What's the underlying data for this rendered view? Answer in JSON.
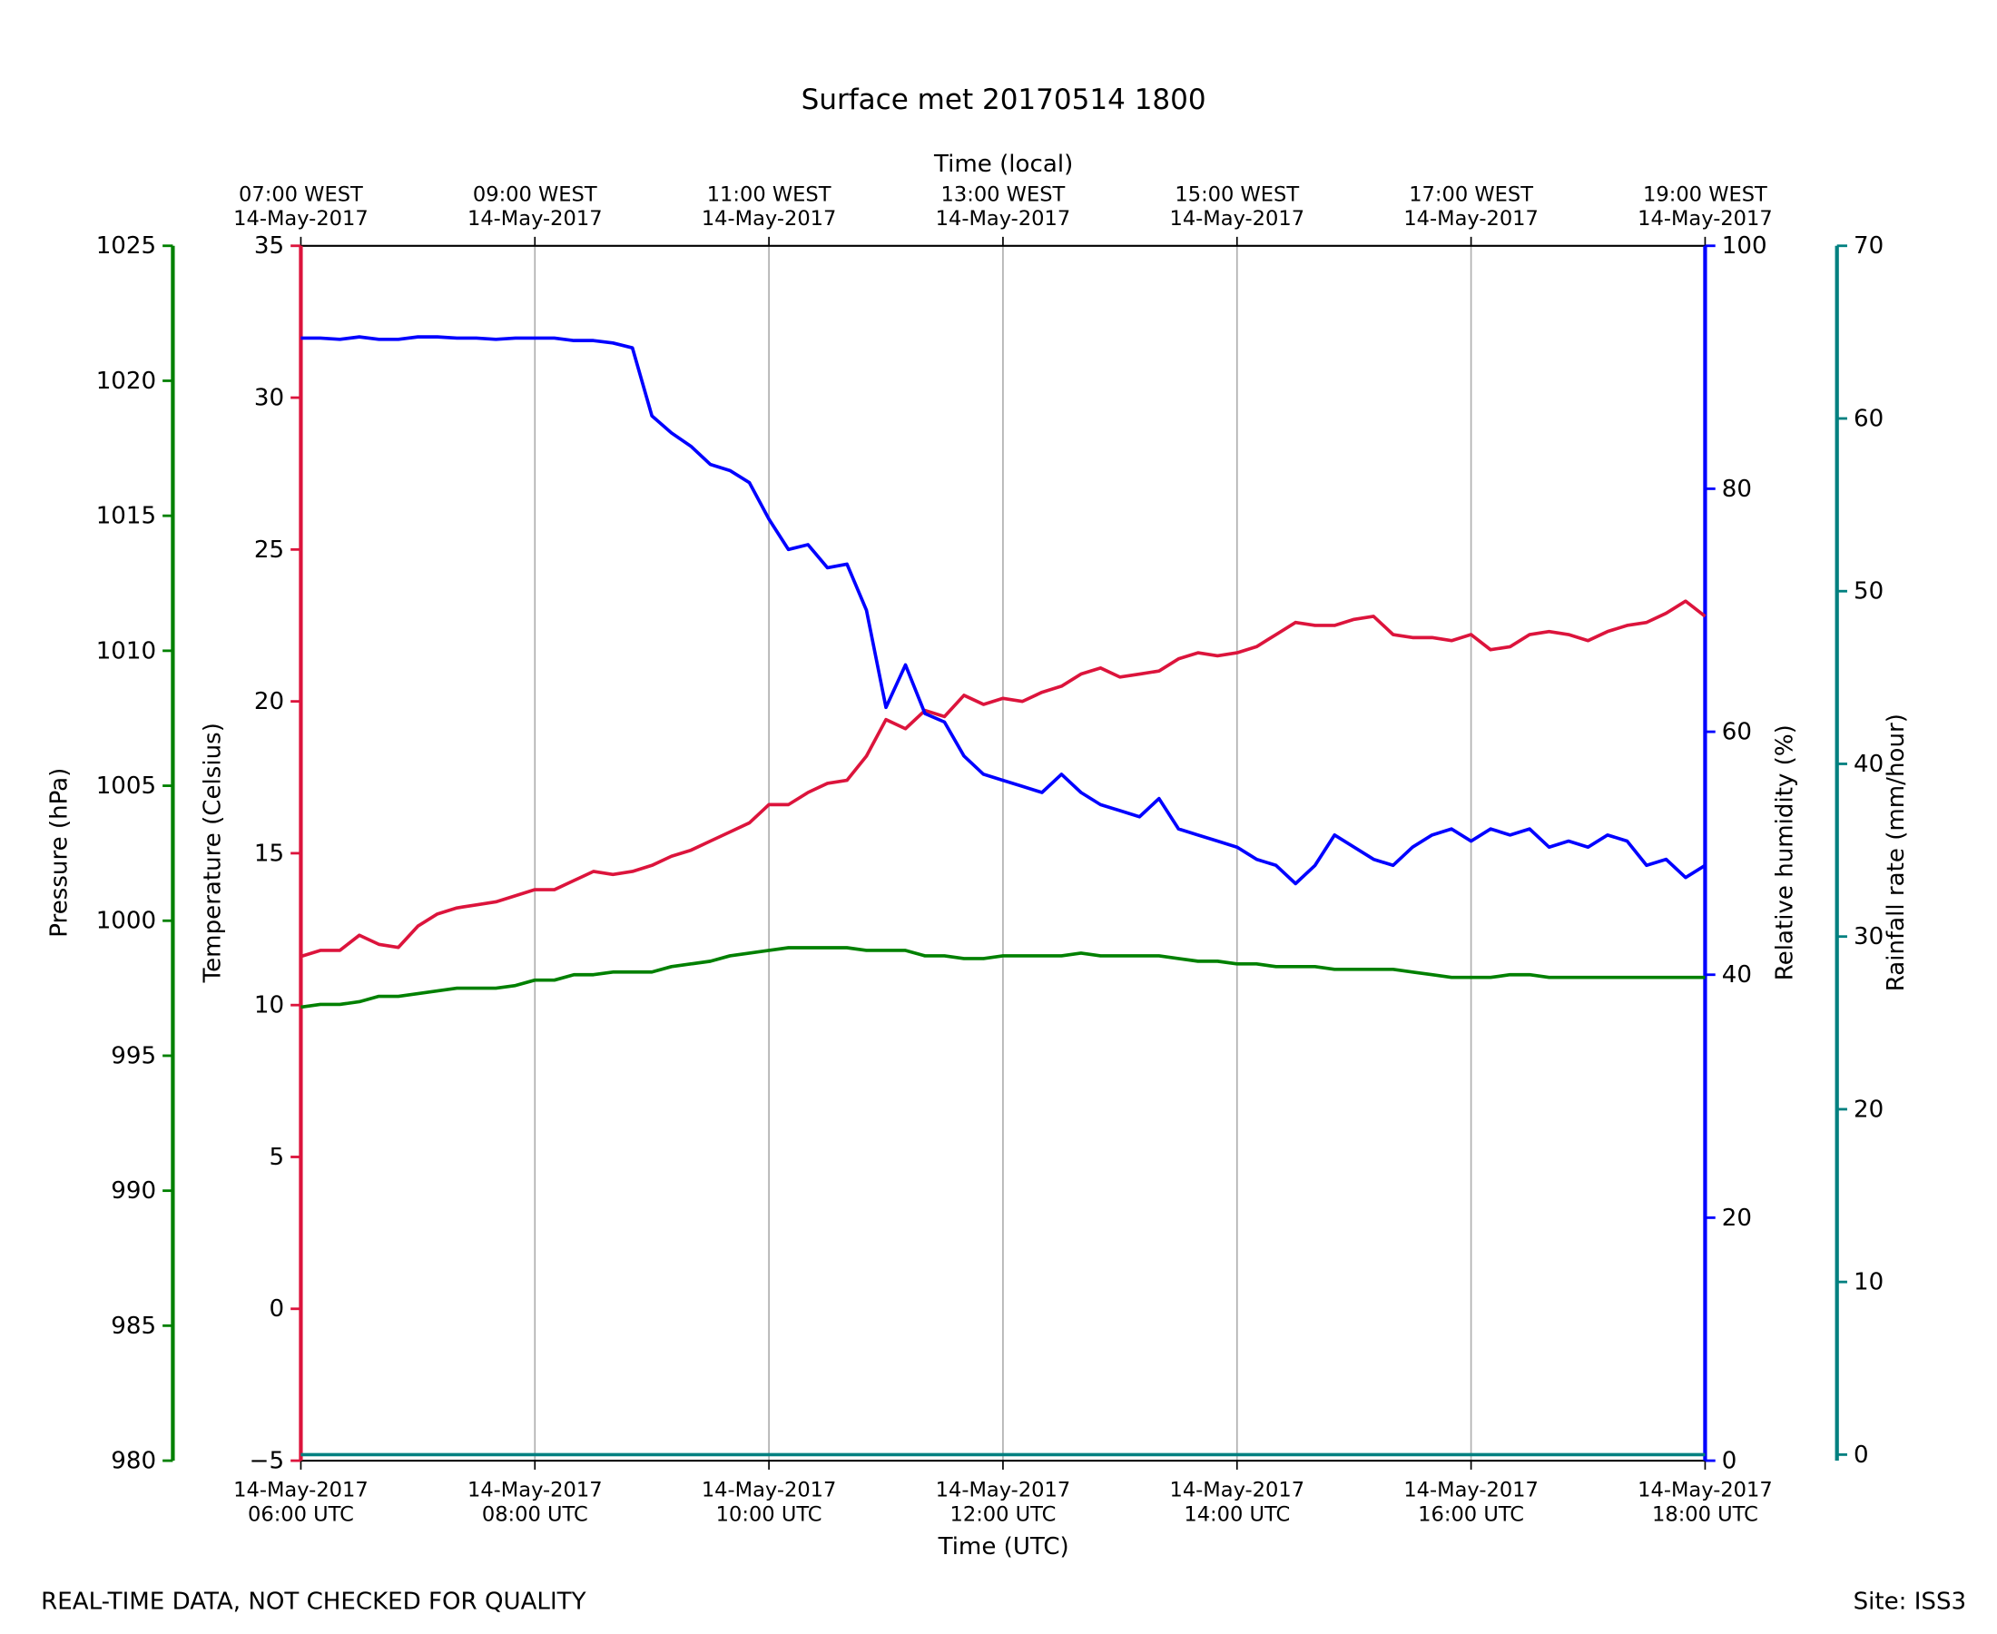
{
  "chart_data": {
    "type": "line",
    "title": "Surface met 20170514 1800",
    "xlabel": "Time (UTC)",
    "x2label": "Time (local)",
    "ylabel": "Temperature (Celsius)",
    "y2label": "Relative humidity (%)",
    "y3label": "Pressure (hPa)",
    "y4label": "Rainfall rate (mm/hour)",
    "annotations": [
      "REAL-TIME DATA, NOT CHECKED FOR QUALITY",
      "Site: ISS3"
    ],
    "grid": true,
    "xlim": [
      "06:00",
      "18:00"
    ],
    "xticks": [
      {
        "value": "06:00",
        "label": [
          "14-May-2017",
          "06:00 UTC"
        ]
      },
      {
        "value": "08:00",
        "label": [
          "14-May-2017",
          "08:00 UTC"
        ]
      },
      {
        "value": "10:00",
        "label": [
          "14-May-2017",
          "10:00 UTC"
        ]
      },
      {
        "value": "12:00",
        "label": [
          "14-May-2017",
          "12:00 UTC"
        ]
      },
      {
        "value": "14:00",
        "label": [
          "14-May-2017",
          "14:00 UTC"
        ]
      },
      {
        "value": "16:00",
        "label": [
          "14-May-2017",
          "16:00 UTC"
        ]
      },
      {
        "value": "18:00",
        "label": [
          "14-May-2017",
          "18:00 UTC"
        ]
      }
    ],
    "x2ticks": [
      {
        "value": "06:00",
        "label": [
          "07:00 WEST",
          "14-May-2017"
        ]
      },
      {
        "value": "08:00",
        "label": [
          "09:00 WEST",
          "14-May-2017"
        ]
      },
      {
        "value": "10:00",
        "label": [
          "11:00 WEST",
          "14-May-2017"
        ]
      },
      {
        "value": "12:00",
        "label": [
          "13:00 WEST",
          "14-May-2017"
        ]
      },
      {
        "value": "14:00",
        "label": [
          "15:00 WEST",
          "14-May-2017"
        ]
      },
      {
        "value": "16:00",
        "label": [
          "17:00 WEST",
          "14-May-2017"
        ]
      },
      {
        "value": "18:00",
        "label": [
          "19:00 WEST",
          "14-May-2017"
        ]
      }
    ],
    "ylim": [
      -5,
      35
    ],
    "yticks": [
      {
        "value": -5,
        "label": "−5"
      },
      0,
      5,
      10,
      15,
      20,
      25,
      30,
      35
    ],
    "y2lim": [
      0,
      100
    ],
    "y2ticks": [
      0,
      20,
      40,
      60,
      80,
      100
    ],
    "y3lim": [
      980,
      1025
    ],
    "y3ticks": [
      980,
      985,
      990,
      995,
      1000,
      1005,
      1010,
      1015,
      1020,
      1025
    ],
    "y4lim": [
      -0.35,
      70
    ],
    "y4ticks": [
      0,
      10,
      20,
      30,
      40,
      50,
      60,
      70
    ],
    "x": [
      "06:00",
      "06:10",
      "06:20",
      "06:30",
      "06:40",
      "06:50",
      "07:00",
      "07:10",
      "07:20",
      "07:30",
      "07:40",
      "07:50",
      "08:00",
      "08:10",
      "08:20",
      "08:30",
      "08:40",
      "08:50",
      "09:00",
      "09:10",
      "09:20",
      "09:30",
      "09:40",
      "09:50",
      "10:00",
      "10:10",
      "10:20",
      "10:30",
      "10:40",
      "10:50",
      "11:00",
      "11:10",
      "11:20",
      "11:30",
      "11:40",
      "11:50",
      "12:00",
      "12:10",
      "12:20",
      "12:30",
      "12:40",
      "12:50",
      "13:00",
      "13:10",
      "13:20",
      "13:30",
      "13:40",
      "13:50",
      "14:00",
      "14:10",
      "14:20",
      "14:30",
      "14:40",
      "14:50",
      "15:00",
      "15:10",
      "15:20",
      "15:30",
      "15:40",
      "15:50",
      "16:00",
      "16:10",
      "16:20",
      "16:30",
      "16:40",
      "16:50",
      "17:00",
      "17:10",
      "17:20",
      "17:30",
      "17:40",
      "17:50",
      "18:00"
    ],
    "series": [
      {
        "name": "Temperature",
        "color": "#dc143c",
        "axis": "y",
        "values": [
          11.6,
          11.8,
          11.8,
          12.3,
          12.0,
          11.9,
          12.6,
          13.0,
          13.2,
          13.3,
          13.4,
          13.6,
          13.8,
          13.8,
          14.1,
          14.4,
          14.3,
          14.4,
          14.6,
          14.9,
          15.1,
          15.4,
          15.7,
          16.0,
          16.6,
          16.6,
          17.0,
          17.3,
          17.4,
          18.2,
          19.4,
          19.1,
          19.7,
          19.5,
          20.2,
          19.9,
          20.1,
          20.0,
          20.3,
          20.5,
          20.9,
          21.1,
          20.8,
          20.9,
          21.0,
          21.4,
          21.6,
          21.5,
          21.6,
          21.8,
          22.2,
          22.6,
          22.5,
          22.5,
          22.7,
          22.8,
          22.2,
          22.1,
          22.1,
          22.0,
          22.2,
          21.7,
          21.8,
          22.2,
          22.3,
          22.2,
          22.0,
          22.3,
          22.5,
          22.6,
          22.9,
          23.3,
          22.8
        ]
      },
      {
        "name": "Relative humidity",
        "color": "#0000ff",
        "axis": "y2",
        "values": [
          92.4,
          92.4,
          92.3,
          92.5,
          92.3,
          92.3,
          92.5,
          92.5,
          92.4,
          92.4,
          92.3,
          92.4,
          92.4,
          92.4,
          92.2,
          92.2,
          92.0,
          91.6,
          86.0,
          84.6,
          83.5,
          82.0,
          81.5,
          80.5,
          77.5,
          75.0,
          75.4,
          73.5,
          73.8,
          70.0,
          62.0,
          65.5,
          61.5,
          60.8,
          58.0,
          56.5,
          56.0,
          55.5,
          55.0,
          56.5,
          55.0,
          54.0,
          53.5,
          53.0,
          54.5,
          52.0,
          51.5,
          51.0,
          50.5,
          49.5,
          49.0,
          47.5,
          49.0,
          51.5,
          50.5,
          49.5,
          49.0,
          50.5,
          51.5,
          52.0,
          51.0,
          52.0,
          51.5,
          52.0,
          50.5,
          51.0,
          50.5,
          51.5,
          51.0,
          49.0,
          49.5,
          48.0,
          49.0
        ]
      },
      {
        "name": "Pressure",
        "color": "#008000",
        "axis": "y3",
        "values": [
          996.8,
          996.9,
          996.9,
          997.0,
          997.2,
          997.2,
          997.3,
          997.4,
          997.5,
          997.5,
          997.5,
          997.6,
          997.8,
          997.8,
          998.0,
          998.0,
          998.1,
          998.1,
          998.1,
          998.3,
          998.4,
          998.5,
          998.7,
          998.8,
          998.9,
          999.0,
          999.0,
          999.0,
          999.0,
          998.9,
          998.9,
          998.9,
          998.7,
          998.7,
          998.6,
          998.6,
          998.7,
          998.7,
          998.7,
          998.7,
          998.8,
          998.7,
          998.7,
          998.7,
          998.7,
          998.6,
          998.5,
          998.5,
          998.4,
          998.4,
          998.3,
          998.3,
          998.3,
          998.2,
          998.2,
          998.2,
          998.2,
          998.1,
          998.0,
          997.9,
          997.9,
          997.9,
          998.0,
          998.0,
          997.9,
          997.9,
          997.9,
          997.9,
          997.9,
          997.9,
          997.9,
          997.9,
          997.9
        ]
      },
      {
        "name": "Rainfall rate",
        "color": "#008080",
        "axis": "y4",
        "values": [
          0,
          0,
          0,
          0,
          0,
          0,
          0,
          0,
          0,
          0,
          0,
          0,
          0,
          0,
          0,
          0,
          0,
          0,
          0,
          0,
          0,
          0,
          0,
          0,
          0,
          0,
          0,
          0,
          0,
          0,
          0,
          0,
          0,
          0,
          0,
          0,
          0,
          0,
          0,
          0,
          0,
          0,
          0,
          0,
          0,
          0,
          0,
          0,
          0,
          0,
          0,
          0,
          0,
          0,
          0,
          0,
          0,
          0,
          0,
          0,
          0,
          0,
          0,
          0,
          0,
          0,
          0,
          0,
          0,
          0,
          0,
          0,
          0
        ]
      }
    ]
  }
}
